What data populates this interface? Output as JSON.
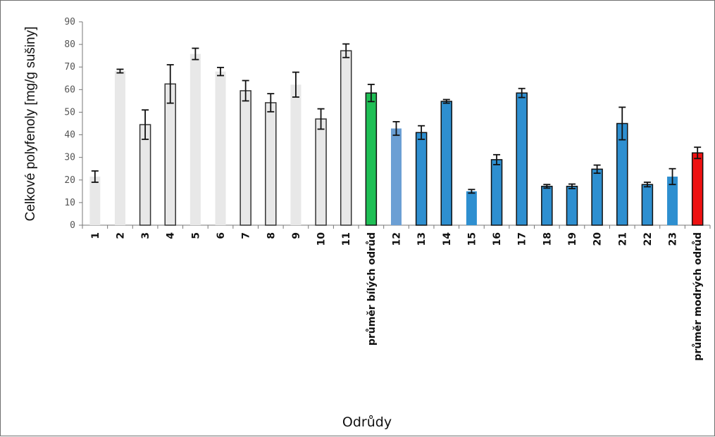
{
  "chart_data": {
    "type": "bar",
    "xlabel": "Odrůdy",
    "ylabel": "Celkové polyfenoly [mg/g sušiny]",
    "ylim": [
      0,
      90
    ],
    "yticks": [
      "0",
      "10",
      "20",
      "30",
      "40",
      "50",
      "60",
      "70",
      "80",
      "90"
    ],
    "grid": false,
    "legend": "none",
    "categories": [
      "1",
      "2",
      "3",
      "4",
      "5",
      "6",
      "7",
      "8",
      "9",
      "10",
      "11",
      "průměr bílých odrůd",
      "12",
      "13",
      "14",
      "15",
      "16",
      "17",
      "18",
      "19",
      "20",
      "21",
      "22",
      "23",
      "průměr modrých odrůd"
    ],
    "values": [
      21.5,
      68.2,
      44.5,
      62.5,
      75.8,
      68.0,
      59.5,
      54.2,
      62.2,
      47.0,
      77.2,
      58.5,
      42.8,
      41.0,
      54.8,
      15.0,
      29.0,
      58.5,
      17.2,
      17.2,
      24.8,
      45.0,
      18.0,
      21.5,
      32.0
    ],
    "error": [
      2.5,
      0.8,
      6.5,
      8.5,
      2.5,
      1.8,
      4.5,
      4.0,
      5.5,
      4.5,
      3.0,
      3.8,
      3.0,
      3.0,
      0.8,
      0.8,
      2.2,
      2.0,
      0.8,
      1.0,
      1.8,
      7.2,
      1.0,
      3.5,
      2.5
    ],
    "bar_colors": [
      "#e8e8e8",
      "#e8e8e8",
      "#e8e8e8",
      "#e8e8e8",
      "#e8e8e8",
      "#e8e8e8",
      "#e8e8e8",
      "#e8e8e8",
      "#e8e8e8",
      "#e8e8e8",
      "#e8e8e8",
      "#1fbf55",
      "#6b9fd4",
      "#2e8fd0",
      "#2e8fd0",
      "#2e8fd0",
      "#2e8fd0",
      "#2e8fd0",
      "#2e8fd0",
      "#2e8fd0",
      "#2e8fd0",
      "#2e8fd0",
      "#2e8fd0",
      "#2e8fd0",
      "#ee1111"
    ],
    "bar_outlines": [
      "none",
      "none",
      "#333333",
      "#333333",
      "none",
      "none",
      "#333333",
      "#333333",
      "none",
      "#333333",
      "#333333",
      "#111111",
      "none",
      "#111111",
      "#111111",
      "none",
      "#111111",
      "#111111",
      "#111111",
      "#111111",
      "#111111",
      "#111111",
      "#111111",
      "none",
      "#111111"
    ]
  }
}
